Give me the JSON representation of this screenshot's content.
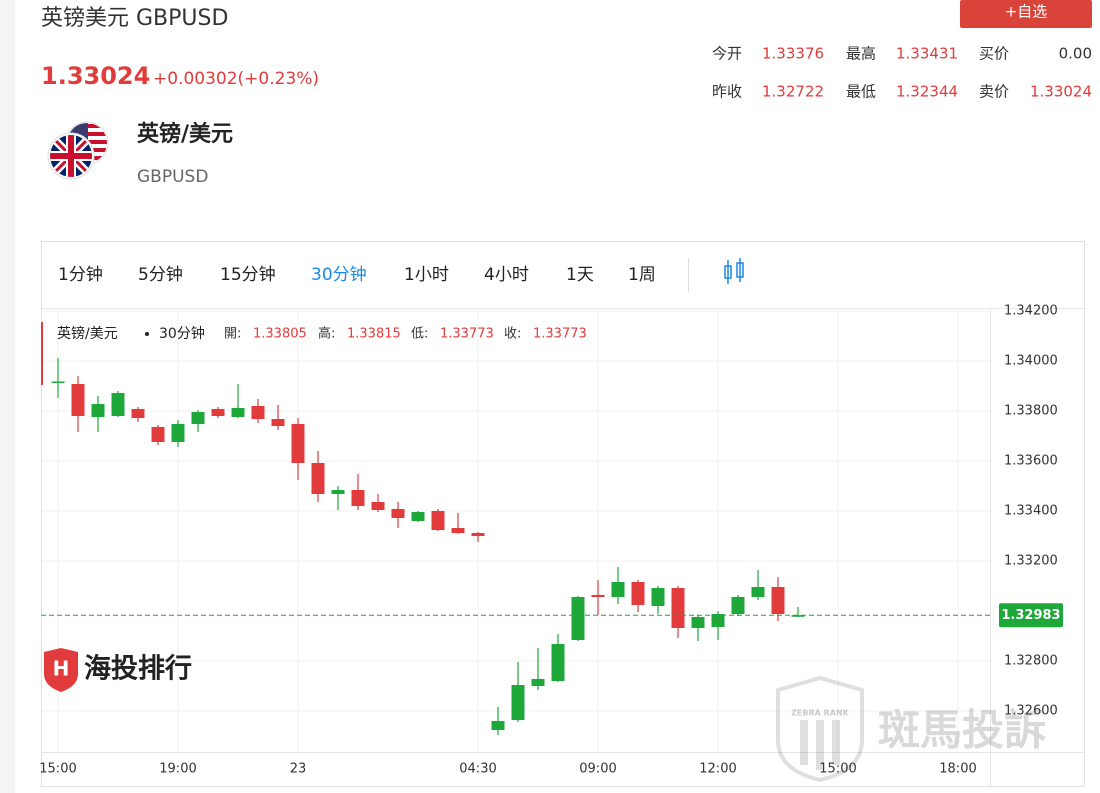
{
  "header": {
    "title": "英镑美元 GBPUSD",
    "price": "1.33024",
    "change": "+0.00302(+0.23%)",
    "watch_button": "+自选"
  },
  "stats": [
    [
      {
        "label": "今开",
        "value": "1.33376"
      },
      {
        "label": "最高",
        "value": "1.33431"
      },
      {
        "label": "买价",
        "value": "0.00"
      }
    ],
    [
      {
        "label": "昨收",
        "value": "1.32722"
      },
      {
        "label": "最低",
        "value": "1.32344"
      },
      {
        "label": "卖价",
        "value": "1.33024"
      }
    ]
  ],
  "instrument": {
    "name": "英镑/美元",
    "code": "GBPUSD"
  },
  "tabs": [
    "1分钟",
    "5分钟",
    "15分钟",
    "30分钟",
    "1小时",
    "4小时",
    "1天",
    "1周"
  ],
  "active_tab": 3,
  "watermarks": {
    "brand": "海投排行",
    "zebra": "斑馬投訴",
    "zebra_en": "ZEBRA RANK"
  },
  "chart_data": {
    "type": "candlestick",
    "legend": {
      "symbol": "英镑/美元",
      "interval": "30分钟",
      "items": [
        {
          "label": "開:",
          "value": "1.33805"
        },
        {
          "label": "高:",
          "value": "1.33815"
        },
        {
          "label": "低:",
          "value": "1.33773"
        },
        {
          "label": "收:",
          "value": "1.33773"
        }
      ]
    },
    "categories": [
      "15:00",
      null,
      null,
      null,
      null,
      null,
      "19:00",
      null,
      null,
      null,
      null,
      null,
      "23",
      null,
      null,
      null,
      null,
      null,
      null,
      null,
      null,
      "04:30",
      null,
      null,
      null,
      null,
      null,
      "09:00",
      null,
      null,
      null,
      null,
      null,
      "12:00",
      null,
      null,
      null,
      null,
      null,
      "15:00",
      null,
      null,
      null,
      null,
      null,
      "18:00",
      null
    ],
    "open": [
      1.33913,
      1.33908,
      1.33776,
      1.3378,
      1.33808,
      1.33736,
      1.33676,
      1.33748,
      1.33808,
      1.33776,
      1.3382,
      1.33768,
      1.33748,
      1.33592,
      1.33468,
      1.33484,
      1.33436,
      1.33408,
      1.3336,
      1.334,
      1.33332,
      1.33312,
      1.32524,
      1.32564,
      1.327,
      1.3272,
      1.32884,
      1.33064,
      1.33056,
      1.33116,
      1.3302,
      1.33092,
      1.32932,
      1.32936,
      1.32988,
      1.33056,
      1.33096,
      1.3298,
      null,
      null,
      null,
      null,
      null,
      null,
      null,
      null,
      null
    ],
    "high": [
      1.34012,
      1.3394,
      1.3386,
      1.3388,
      1.33816,
      1.33744,
      1.33764,
      1.33804,
      1.33816,
      1.33908,
      1.33848,
      1.33824,
      1.33772,
      1.3364,
      1.335,
      1.33548,
      1.33468,
      1.33436,
      1.334,
      1.33408,
      1.33392,
      1.33316,
      1.32616,
      1.32796,
      1.32852,
      1.32908,
      1.3306,
      1.33124,
      1.33176,
      1.33124,
      1.331,
      1.331,
      1.32984,
      1.33,
      1.33064,
      1.33164,
      1.33136,
      1.33016,
      null,
      null,
      null,
      null,
      null,
      null,
      null,
      null,
      null
    ],
    "low": [
      1.33852,
      1.33716,
      1.33716,
      1.33776,
      1.33756,
      1.33664,
      1.33656,
      1.33716,
      1.33772,
      1.33772,
      1.33752,
      1.33724,
      1.33524,
      1.33436,
      1.33404,
      1.33404,
      1.33396,
      1.33332,
      1.33356,
      1.3332,
      1.33308,
      1.33276,
      1.32504,
      1.32556,
      1.32684,
      1.32716,
      1.3288,
      1.32984,
      1.33028,
      1.32996,
      1.32988,
      1.32892,
      1.3288,
      1.32884,
      1.3298,
      1.33044,
      1.3296,
      1.32976,
      null,
      null,
      null,
      null,
      null,
      null,
      null,
      null,
      null
    ],
    "close": [
      1.33918,
      1.3378,
      1.33828,
      1.33872,
      1.33772,
      1.33676,
      1.33748,
      1.33796,
      1.3378,
      1.33812,
      1.33768,
      1.3374,
      1.33592,
      1.33468,
      1.33484,
      1.3342,
      1.33404,
      1.33372,
      1.33396,
      1.33324,
      1.33312,
      1.333,
      1.3256,
      1.32704,
      1.32728,
      1.32868,
      1.33056,
      1.33056,
      1.33116,
      1.33024,
      1.33092,
      1.32932,
      1.32976,
      1.32988,
      1.33056,
      1.33096,
      1.32988,
      1.32983,
      null,
      null,
      null,
      null,
      null,
      null,
      null,
      null,
      null
    ],
    "up_color": "#1fa83a",
    "down_color": "#e23b3b",
    "last_price": 1.32983,
    "last_price_color": "#1fa83a",
    "ylim": [
      1.32436,
      1.34212
    ],
    "yticks": [
      {
        "value": 1.326,
        "label": "1.32600"
      },
      {
        "value": 1.328,
        "label": "1.32800"
      },
      {
        "value": 1.332,
        "label": "1.33200"
      },
      {
        "value": 1.334,
        "label": "1.33400"
      },
      {
        "value": 1.336,
        "label": "1.33600"
      },
      {
        "value": 1.338,
        "label": "1.33800"
      },
      {
        "value": 1.34,
        "label": "1.34000"
      },
      {
        "value": 1.342,
        "label": "1.34200"
      }
    ],
    "grid": true
  }
}
